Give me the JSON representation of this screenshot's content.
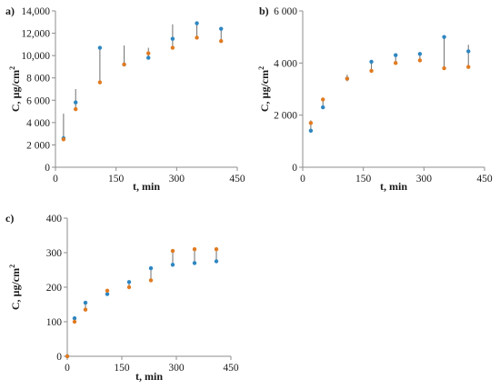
{
  "colors": {
    "series_a": "#2E86C1",
    "series_b": "#E07B21",
    "error_bar": "#6f6f6f",
    "axis": "#8c8c8c"
  },
  "chart_data": [
    {
      "panel_label": "a)",
      "type": "scatter",
      "xlabel": "t, min",
      "ylabel": "C, µg/cm",
      "ylabel_sup": "2",
      "xlim": [
        0,
        450
      ],
      "ylim": [
        0,
        14000
      ],
      "xticks": [
        0,
        150,
        300,
        450
      ],
      "xtick_labels": [
        "0",
        "150",
        "300",
        "450"
      ],
      "yticks": [
        0,
        2000,
        4000,
        6000,
        8000,
        10000,
        12000,
        14000
      ],
      "ytick_labels": [
        "0",
        "2 000",
        "4 000",
        "6 000",
        "8 000",
        "10,000",
        "12,000",
        "14,000"
      ],
      "grid": false,
      "x": [
        20,
        50,
        110,
        170,
        230,
        290,
        350,
        410
      ],
      "series": [
        {
          "values": [
            2600,
            5800,
            10700,
            9200,
            9800,
            11500,
            12900,
            12400
          ]
        },
        {
          "values": [
            2500,
            5200,
            7600,
            9200,
            10200,
            10700,
            11600,
            11300
          ]
        }
      ],
      "error_bars": {
        "low": [
          2500,
          5200,
          7600,
          9200,
          9700,
          10700,
          11600,
          11300
        ],
        "high": [
          4800,
          7000,
          10700,
          10900,
          10700,
          12800,
          12900,
          12400
        ]
      }
    },
    {
      "panel_label": "b)",
      "type": "scatter",
      "xlabel": "t, min",
      "ylabel": "C, µg/cm",
      "ylabel_sup": "2",
      "xlim": [
        0,
        450
      ],
      "ylim": [
        0,
        6000
      ],
      "xticks": [
        0,
        150,
        300,
        450
      ],
      "xtick_labels": [
        "0",
        "150",
        "300",
        "450"
      ],
      "yticks": [
        0,
        2000,
        4000,
        6000
      ],
      "ytick_labels": [
        "0",
        "2 000",
        "4 000",
        "6 000"
      ],
      "grid": false,
      "x": [
        20,
        50,
        110,
        170,
        230,
        290,
        350,
        410
      ],
      "series": [
        {
          "values": [
            1400,
            2300,
            3400,
            4050,
            4300,
            4350,
            5000,
            4450
          ]
        },
        {
          "values": [
            1700,
            2600,
            3400,
            3700,
            4000,
            4100,
            3800,
            3850
          ]
        }
      ],
      "error_bars": {
        "low": [
          1400,
          2300,
          3300,
          3700,
          4000,
          4050,
          3800,
          3850
        ],
        "high": [
          1800,
          2600,
          3550,
          4100,
          4350,
          4400,
          5050,
          4700
        ]
      }
    },
    {
      "panel_label": "c)",
      "type": "scatter",
      "xlabel": "t, min",
      "ylabel": "C, µg/cm",
      "ylabel_sup": "2",
      "xlim": [
        0,
        450
      ],
      "ylim": [
        0,
        400
      ],
      "xticks": [
        0,
        150,
        300,
        450
      ],
      "xtick_labels": [
        "0",
        "150",
        "300",
        "450"
      ],
      "yticks": [
        0,
        100,
        200,
        300,
        400
      ],
      "ytick_labels": [
        "0",
        "100",
        "200",
        "300",
        "400"
      ],
      "grid": false,
      "x": [
        0,
        20,
        50,
        110,
        170,
        230,
        290,
        350,
        410
      ],
      "series": [
        {
          "values": [
            0,
            110,
            155,
            180,
            215,
            255,
            265,
            270,
            275
          ]
        },
        {
          "values": [
            0,
            100,
            135,
            190,
            200,
            220,
            305,
            310,
            310
          ]
        }
      ],
      "error_bars": {
        "low": [
          0,
          100,
          135,
          180,
          200,
          220,
          265,
          270,
          275
        ],
        "high": [
          0,
          110,
          155,
          190,
          215,
          255,
          305,
          310,
          310
        ]
      }
    }
  ]
}
